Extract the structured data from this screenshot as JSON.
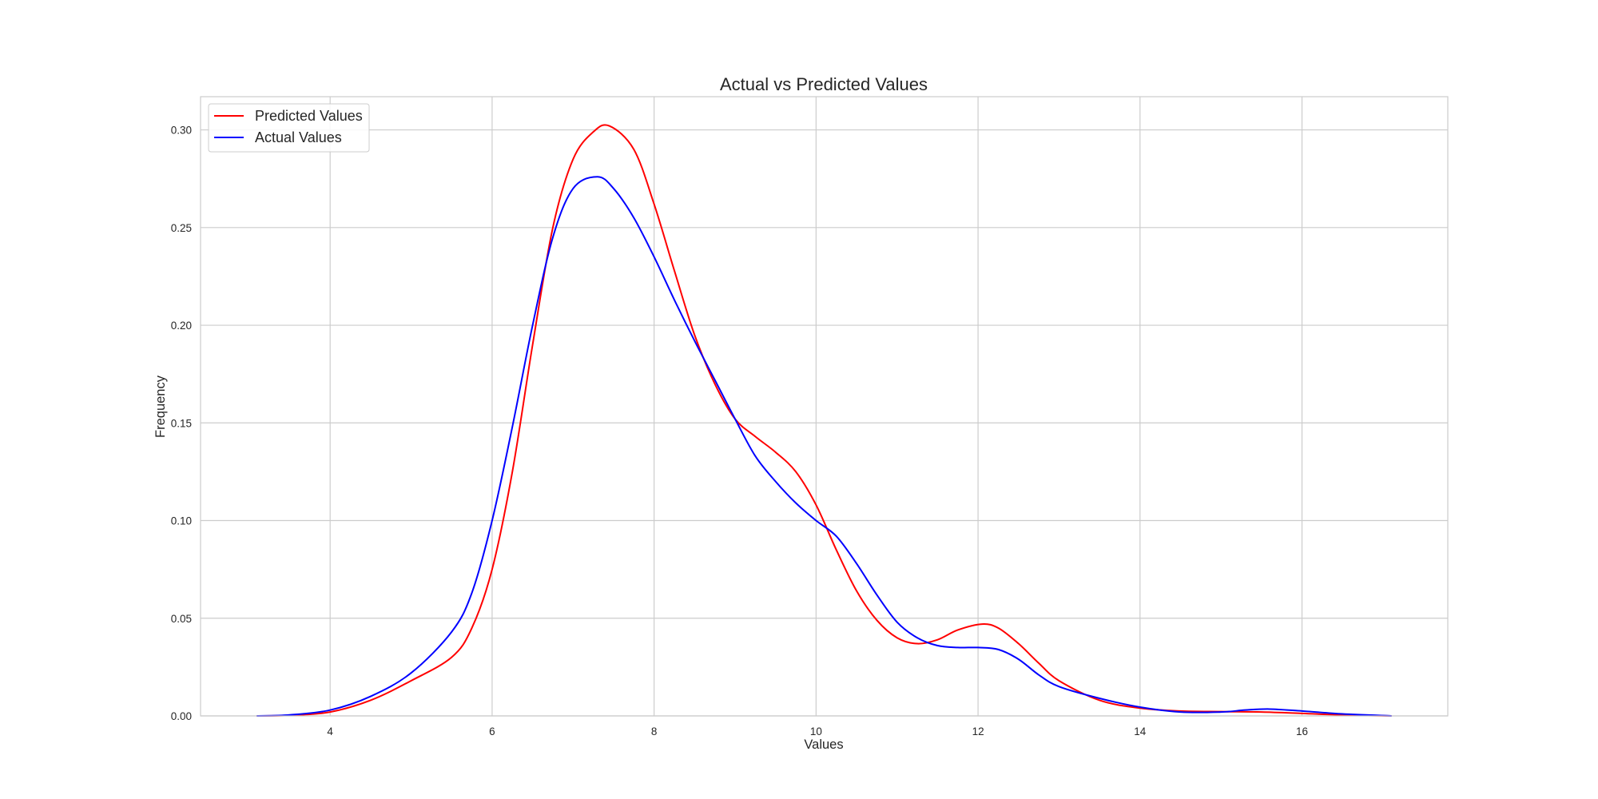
{
  "chart_data": {
    "type": "line",
    "title": "Actual vs Predicted Values",
    "xlabel": "Values",
    "ylabel": "Frequency",
    "xlim": [
      2.4,
      17.8
    ],
    "ylim": [
      0,
      0.317
    ],
    "xticks": [
      4,
      6,
      8,
      10,
      12,
      14,
      16
    ],
    "yticks": [
      0.0,
      0.05,
      0.1,
      0.15,
      0.2,
      0.25,
      0.3
    ],
    "grid": true,
    "legend_position": "top-left",
    "series": [
      {
        "name": "Predicted Values",
        "color": "#ff0000",
        "x": [
          3.1,
          3.5,
          4.0,
          4.5,
          5.0,
          5.5,
          5.75,
          6.0,
          6.25,
          6.5,
          6.75,
          7.0,
          7.25,
          7.45,
          7.75,
          8.0,
          8.25,
          8.5,
          8.75,
          9.0,
          9.25,
          9.5,
          9.75,
          10.0,
          10.25,
          10.5,
          10.75,
          11.0,
          11.25,
          11.5,
          11.75,
          12.05,
          12.25,
          12.5,
          12.75,
          13.0,
          13.5,
          14.0,
          14.5,
          15.0,
          15.5,
          16.0,
          16.5,
          17.1
        ],
        "y": [
          0.0,
          0.0003,
          0.002,
          0.008,
          0.018,
          0.03,
          0.045,
          0.075,
          0.125,
          0.19,
          0.25,
          0.285,
          0.299,
          0.302,
          0.29,
          0.262,
          0.228,
          0.195,
          0.17,
          0.152,
          0.143,
          0.135,
          0.125,
          0.108,
          0.085,
          0.064,
          0.049,
          0.04,
          0.037,
          0.039,
          0.044,
          0.047,
          0.045,
          0.037,
          0.027,
          0.018,
          0.008,
          0.004,
          0.0025,
          0.0022,
          0.002,
          0.0013,
          0.0005,
          0.0
        ]
      },
      {
        "name": "Actual Values",
        "color": "#0000ff",
        "x": [
          3.1,
          3.5,
          4.0,
          4.5,
          5.0,
          5.5,
          5.75,
          6.0,
          6.25,
          6.5,
          6.75,
          7.0,
          7.3,
          7.5,
          7.75,
          8.0,
          8.25,
          8.5,
          8.75,
          9.0,
          9.25,
          9.5,
          9.75,
          10.0,
          10.25,
          10.5,
          10.75,
          11.0,
          11.25,
          11.5,
          11.75,
          12.0,
          12.25,
          12.5,
          12.75,
          13.0,
          13.5,
          14.0,
          14.5,
          15.0,
          15.3,
          15.6,
          16.0,
          16.5,
          17.1
        ],
        "y": [
          0.0,
          0.0005,
          0.003,
          0.01,
          0.022,
          0.043,
          0.063,
          0.1,
          0.148,
          0.2,
          0.245,
          0.27,
          0.276,
          0.27,
          0.255,
          0.235,
          0.213,
          0.192,
          0.172,
          0.152,
          0.133,
          0.12,
          0.109,
          0.1,
          0.092,
          0.078,
          0.062,
          0.048,
          0.04,
          0.036,
          0.035,
          0.035,
          0.034,
          0.029,
          0.021,
          0.015,
          0.009,
          0.0045,
          0.002,
          0.002,
          0.003,
          0.0035,
          0.0025,
          0.001,
          0.0
        ]
      }
    ]
  }
}
